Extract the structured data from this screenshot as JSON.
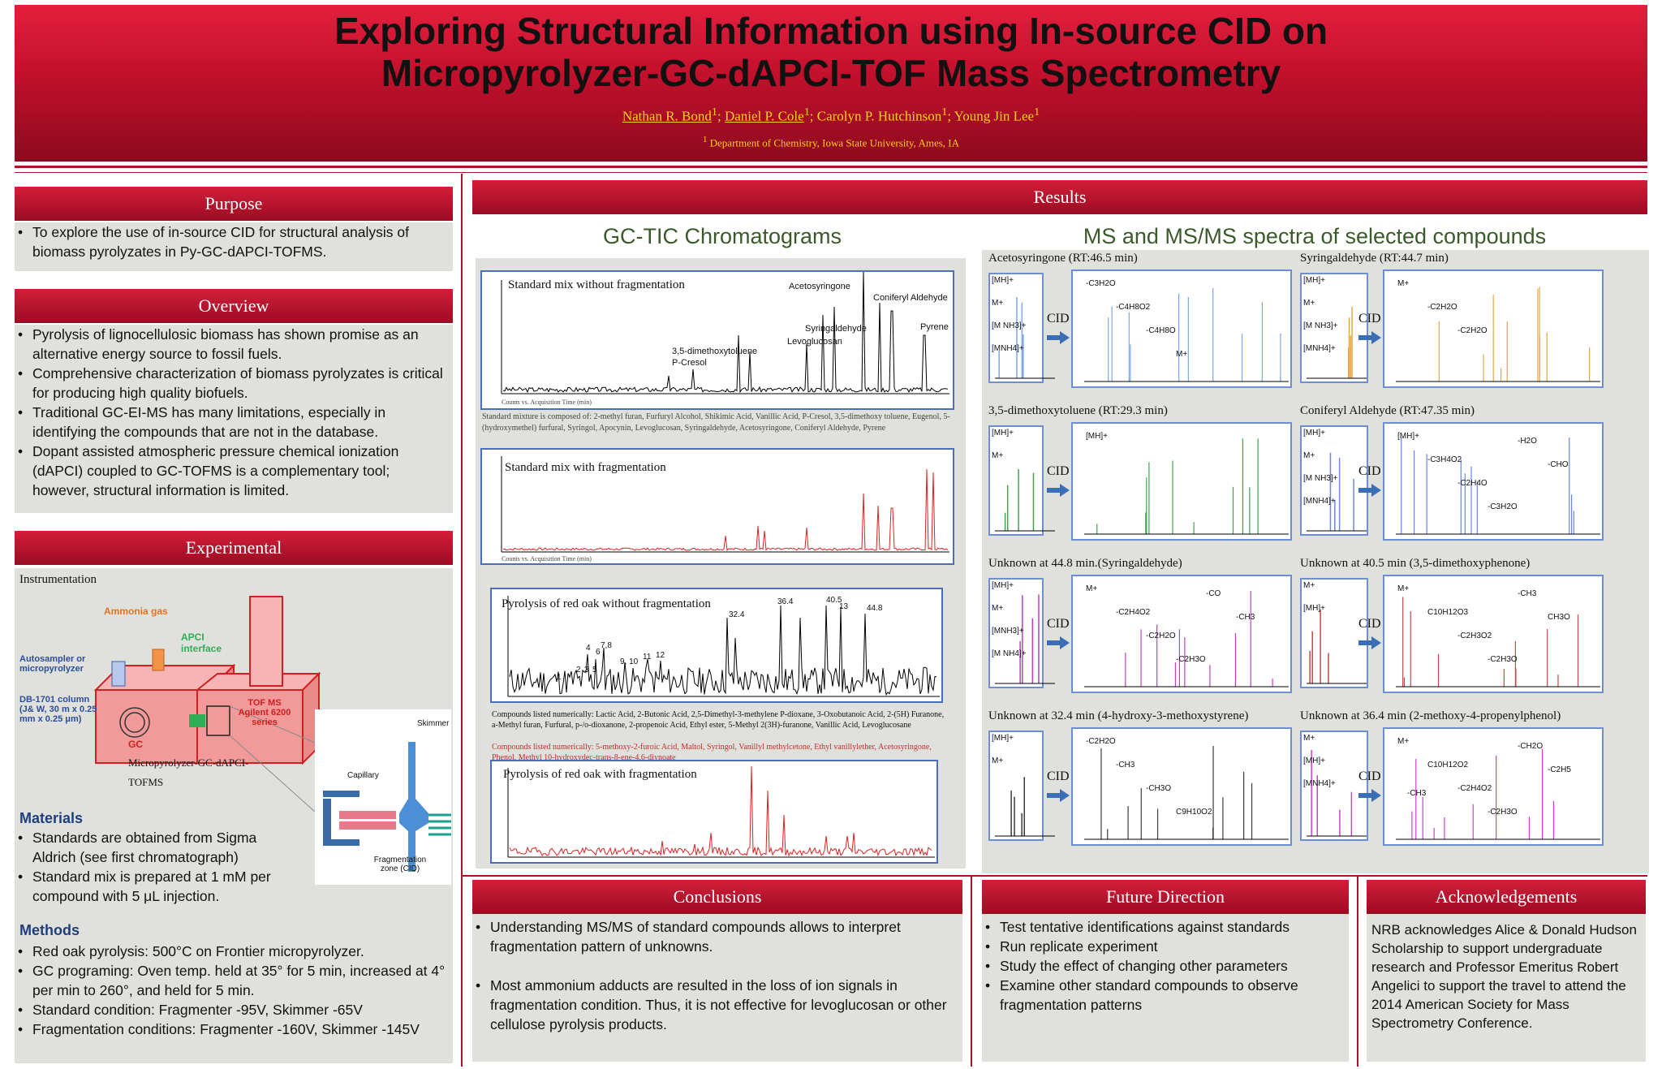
{
  "title_line1": "Exploring Structural Information using In-source CID on",
  "title_line2": "Micropyrolyzer-GC-dAPCI-TOF Mass Spectrometry",
  "authors": {
    "a1": "Nathan R. Bond",
    "a2": "Daniel P. Cole",
    "a3": "Carolyn P. Hutchinson",
    "a4": "Young Jin Lee",
    "sup": "1",
    "sep": "; "
  },
  "affiliation": "Department of Chemistry, Iowa State University, Ames, IA",
  "purpose": {
    "header": "Purpose",
    "items": [
      "To explore the use of in-source CID for structural analysis of biomass pyrolyzates in Py-GC-dAPCI-TOFMS."
    ]
  },
  "overview": {
    "header": "Overview",
    "items": [
      "Pyrolysis of lignocellulosic biomass has shown promise as an alternative energy source to fossil fuels.",
      "Comprehensive characterization of biomass pyrolyzates is critical for producing high quality biofuels.",
      "Traditional GC-EI-MS has many limitations, especially in identifying the compounds that are not in the database.",
      "Dopant assisted atmospheric pressure chemical ionization (dAPCI) coupled to GC-TOFMS is a complementary tool; however, structural information is limited."
    ]
  },
  "experimental": {
    "header": "Experimental",
    "instrumentation": "Instrumentation",
    "labels": {
      "ammonia": "Ammonia gas",
      "apci": "APCI interface",
      "autosampler": "Autosampler or micropyrolyzer",
      "column": "DB-1701 column (J& W, 30 m x 0.25 mm x 0.25 μm)",
      "gc": "GC",
      "tof": "TOF MS Agilent 6200 series",
      "caption": "Micropyrolyzer-GC-dAPCI-TOFMS",
      "skimmer": "Skimmer",
      "capillary": "Capillary",
      "frag_zone": "Fragmentation zone (CID)"
    },
    "materials_title": "Materials",
    "materials": [
      "Standards are obtained from Sigma Aldrich (see first chromatograph)",
      "Standard mix is prepared at 1 mM per compound with 5 μL injection."
    ],
    "methods_title": "Methods",
    "methods": [
      "Red oak pyrolysis: 500°C on Frontier micropyrolyzer.",
      "GC programing: Oven temp. held at 35° for 5 min, increased at 4° per min to 260°, and held for 5 min.",
      "Standard condition: Fragmenter -95V, Skimmer -65V",
      "Fragmentation conditions: Fragmenter -160V, Skimmer -145V"
    ]
  },
  "results": {
    "header": "Results",
    "gc_title": "GC-TIC Chromatograms",
    "ms_title": "MS and MS/MS spectra of selected compounds",
    "chrom1": {
      "label": "Standard mix without fragmentation",
      "peaks": [
        "Acetosyringone",
        "Coniferyl Aldehyde",
        "Syringaldehyde",
        "Pyrene",
        "Levoglucosan",
        "3,5-dimethoxytoluene",
        "P-Cresol"
      ],
      "caption": "Standard mixture is composed of: 2-methyl furan, Furfuryl Alcohol, Shikimic Acid, Vanillic Acid, P-Cresol, 3,5-dimethoxy toluene, Eugenol, 5-(hydroxymethel) furfural, Syringol, Apocynin, Levoglucosan, Syringaldehyde, Acetosyringone, Coniferyl Aldehyde, Pyrene"
    },
    "chrom2": {
      "label": "Standard mix with fragmentation"
    },
    "chrom3": {
      "label": "Pyrolysis of red oak without fragmentation",
      "peak_labels": [
        "1",
        "2",
        "3",
        "4",
        "5",
        "6",
        "7,8",
        "9, 10",
        "11",
        "12",
        "32.4",
        "36.4",
        "40.5",
        "13",
        "44.8"
      ],
      "caption_black": "Compounds listed numerically: Lactic Acid, 2-Butonic Acid, 2,5-Dimethyl-3-methylene P-dioxane, 3-Oxobutanoic Acid, 2-(5H) Furanone, a-Methyl furan, Furfural, p-/o-dioxanone, 2-propenoic Acid, Ethyl ester, 5-Methyl 2(3H)-furanone, Vanillic Acid, Levoglucosane",
      "caption_red": "Compounds listed numerically: 5-methoxy-2-furoic Acid, Maltol, Syringol, Vanillyl methylcetone, Ethyl vanillylether, Acetosyringone, Phenol, Methyl 10-hydroxydec-trans-8-ene-4,6-diynoate"
    },
    "chrom4": {
      "label": "Pyrolysis of red oak with fragmentation"
    },
    "axis_caption": "Counts vs. Acquisition Time (min)",
    "spectra": [
      {
        "title": "Acetosyringone (RT:46.5 min)",
        "ions": [
          "[MH]+",
          "M+",
          "[M NH3]+",
          "[MNH4]+"
        ],
        "frag": [
          "-C3H2O",
          "-C4H8O2",
          "-C4H8O",
          "M+"
        ]
      },
      {
        "title": "Syringaldehyde (RT:44.7 min)",
        "ions": [
          "[MH]+",
          "M+",
          "[M NH3]+",
          "[MNH4]+"
        ],
        "frag": [
          "M+",
          "-C2H2O",
          "-C2H2O"
        ]
      },
      {
        "title": "3,5-dimethoxytoluene (RT:29.3 min)",
        "ions": [
          "[MH]+",
          "M+"
        ],
        "frag": [
          "[MH]+"
        ]
      },
      {
        "title": "Coniferyl Aldehyde (RT:47.35 min)",
        "ions": [
          "[MH]+",
          "M+",
          "[M NH3]+",
          "[MNH4]+"
        ],
        "frag": [
          "[MH]+",
          "-C3H4O2",
          "-C2H4O",
          "-C3H2O",
          "-H2O",
          "-CHO"
        ]
      },
      {
        "title": "Unknown at 44.8 min.(Syringaldehyde)",
        "ions": [
          "[MH]+",
          "M+",
          "[MNH3]+",
          "[M NH4]+"
        ],
        "frag": [
          "M+",
          "-C2H4O2",
          "-C2H2O",
          "-C2H3O",
          "-CO",
          "-CH3"
        ]
      },
      {
        "title": "Unknown at 40.5 min (3,5-dimethoxyphenone)",
        "ions": [
          "M+",
          "[MH]+"
        ],
        "frag": [
          "M+",
          "C10H12O3",
          "-C2H3O2",
          "-C2H3O",
          "-CH3",
          "CH3O"
        ]
      },
      {
        "title": "Unknown at 32.4 min (4-hydroxy-3-methoxystyrene)",
        "ions": [
          "[MH]+",
          "M+"
        ],
        "frag": [
          "-C2H2O",
          "-CH3",
          "-CH3O",
          "C9H10O2"
        ]
      },
      {
        "title": "Unknown at 36.4 min (2-methoxy-4-propenylphenol)",
        "ions": [
          "M+",
          "[MH]+",
          "[MNH4]+"
        ],
        "frag": [
          "M+",
          "C10H12O2",
          "-C2H4O2",
          "-C2H3O",
          "-CH2O",
          "-C2H5",
          "-CH3"
        ]
      }
    ],
    "cid": "CID"
  },
  "conclusions": {
    "header": "Conclusions",
    "items": [
      "Understanding MS/MS of standard compounds allows to interpret fragmentation pattern of unknowns.",
      "Most ammonium adducts are resulted in the loss of ion signals in fragmentation condition. Thus, it is not effective for levoglucosan or other cellulose pyrolysis products."
    ]
  },
  "future": {
    "header": "Future Direction",
    "items": [
      "Test tentative identifications against standards",
      "Run replicate experiment",
      "Study the effect of changing other parameters",
      "Examine other standard compounds to observe fragmentation patterns"
    ]
  },
  "acknowledgements": {
    "header": "Acknowledgements",
    "text": "NRB acknowledges Alice & Donald Hudson Scholarship to support undergraduate research and Professor Emeritus Robert Angelici to support the travel to attend the 2014 American Society for Mass Spectrometry Conference."
  },
  "colors": {
    "banner": "#c2102c",
    "header": "#b01028",
    "box": "#e0e0dc",
    "author_gold": "#ffd21c",
    "section_blue": "#1f3f7a"
  }
}
